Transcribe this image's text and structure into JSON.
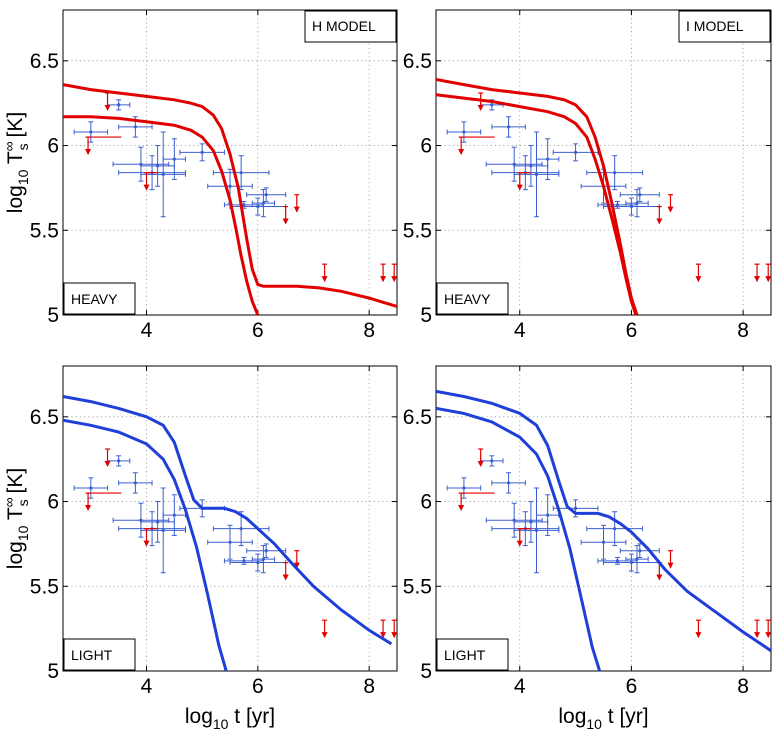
{
  "figure": {
    "x_label": "log10 t [yr]",
    "y_label": "log10 T∞s [K]"
  },
  "chart_data": [
    {
      "type": "line",
      "panel": "top-left",
      "model_label": "H MODEL",
      "envelope_label": "HEAVY",
      "xlim": [
        2.5,
        8.5
      ],
      "ylim": [
        5,
        6.8
      ],
      "xticks": [
        4,
        6,
        8
      ],
      "yticks": [
        5,
        5.5,
        6,
        6.5
      ],
      "show_x_label": false,
      "show_y_label": true,
      "curve_color": "#e00000",
      "series": [
        {
          "name": "curve-1",
          "x": [
            2.5,
            3,
            3.5,
            4,
            4.5,
            4.8,
            5,
            5.2,
            5.35,
            5.5,
            5.65,
            5.8,
            5.9,
            6,
            6.1,
            6.3,
            6.7,
            7.1,
            7.5,
            8,
            8.5
          ],
          "y": [
            6.36,
            6.33,
            6.31,
            6.29,
            6.27,
            6.25,
            6.23,
            6.18,
            6.1,
            5.95,
            5.75,
            5.45,
            5.27,
            5.18,
            5.17,
            5.17,
            5.17,
            5.16,
            5.14,
            5.1,
            5.05
          ]
        },
        {
          "name": "curve-2",
          "x": [
            2.5,
            3,
            3.5,
            4,
            4.5,
            4.8,
            5,
            5.2,
            5.35,
            5.5,
            5.6,
            5.7,
            5.8,
            5.9,
            6
          ],
          "y": [
            6.17,
            6.17,
            6.16,
            6.14,
            6.12,
            6.09,
            6.05,
            5.97,
            5.85,
            5.68,
            5.52,
            5.35,
            5.2,
            5.08,
            5.0
          ]
        }
      ]
    },
    {
      "type": "line",
      "panel": "top-right",
      "model_label": "I MODEL",
      "envelope_label": "HEAVY",
      "xlim": [
        2.5,
        8.5
      ],
      "ylim": [
        5,
        6.8
      ],
      "xticks": [
        4,
        6,
        8
      ],
      "yticks": [
        5,
        5.5,
        6,
        6.5
      ],
      "show_x_label": false,
      "show_y_label": false,
      "curve_color": "#e00000",
      "series": [
        {
          "name": "curve-1",
          "x": [
            2.5,
            3,
            3.5,
            4,
            4.5,
            4.8,
            5,
            5.2,
            5.35,
            5.5,
            5.65,
            5.8,
            5.9,
            6,
            6.1
          ],
          "y": [
            6.39,
            6.36,
            6.33,
            6.31,
            6.29,
            6.27,
            6.24,
            6.17,
            6.05,
            5.88,
            5.66,
            5.42,
            5.25,
            5.1,
            5.0
          ]
        },
        {
          "name": "curve-2",
          "x": [
            2.5,
            3,
            3.5,
            4,
            4.5,
            4.8,
            5,
            5.2,
            5.35,
            5.5,
            5.65,
            5.8,
            5.9,
            6,
            6.08
          ],
          "y": [
            6.3,
            6.28,
            6.26,
            6.23,
            6.2,
            6.17,
            6.13,
            6.05,
            5.92,
            5.76,
            5.57,
            5.37,
            5.22,
            5.08,
            5.0
          ]
        }
      ]
    },
    {
      "type": "line",
      "panel": "bottom-left",
      "model_label": "",
      "envelope_label": "LIGHT",
      "xlim": [
        2.5,
        8.5
      ],
      "ylim": [
        5,
        6.8
      ],
      "xticks": [
        4,
        6,
        8
      ],
      "yticks": [
        5,
        5.5,
        6,
        6.5
      ],
      "show_x_label": true,
      "show_y_label": true,
      "curve_color": "#1f3fd9",
      "series": [
        {
          "name": "curve-1",
          "x": [
            2.5,
            3,
            3.5,
            4,
            4.3,
            4.5,
            4.7,
            4.85,
            5,
            5.2,
            5.4,
            5.6,
            5.8,
            6,
            6.3,
            6.6,
            7,
            7.5,
            8,
            8.4
          ],
          "y": [
            6.62,
            6.59,
            6.55,
            6.5,
            6.45,
            6.35,
            6.15,
            6.01,
            5.96,
            5.96,
            5.96,
            5.94,
            5.9,
            5.84,
            5.75,
            5.64,
            5.5,
            5.36,
            5.24,
            5.16
          ]
        },
        {
          "name": "curve-2",
          "x": [
            2.5,
            3,
            3.5,
            4,
            4.3,
            4.5,
            4.7,
            4.9,
            5.1,
            5.3,
            5.45
          ],
          "y": [
            6.48,
            6.45,
            6.41,
            6.34,
            6.25,
            6.13,
            5.95,
            5.73,
            5.45,
            5.15,
            4.98
          ]
        }
      ]
    },
    {
      "type": "line",
      "panel": "bottom-right",
      "model_label": "",
      "envelope_label": "LIGHT",
      "xlim": [
        2.5,
        8.5
      ],
      "ylim": [
        5,
        6.8
      ],
      "xticks": [
        4,
        6,
        8
      ],
      "yticks": [
        5,
        5.5,
        6,
        6.5
      ],
      "show_x_label": true,
      "show_y_label": false,
      "curve_color": "#1f3fd9",
      "series": [
        {
          "name": "curve-1",
          "x": [
            2.5,
            3,
            3.5,
            4,
            4.3,
            4.5,
            4.7,
            4.85,
            5,
            5.2,
            5.4,
            5.6,
            5.8,
            6,
            6.3,
            6.6,
            7,
            7.5,
            8,
            8.5
          ],
          "y": [
            6.65,
            6.62,
            6.58,
            6.52,
            6.45,
            6.33,
            6.12,
            5.97,
            5.93,
            5.93,
            5.93,
            5.91,
            5.87,
            5.82,
            5.72,
            5.6,
            5.47,
            5.35,
            5.23,
            5.12
          ]
        },
        {
          "name": "curve-2",
          "x": [
            2.5,
            3,
            3.5,
            4,
            4.3,
            4.5,
            4.7,
            4.9,
            5.1,
            5.3,
            5.45
          ],
          "y": [
            6.55,
            6.52,
            6.47,
            6.38,
            6.28,
            6.15,
            5.95,
            5.72,
            5.43,
            5.14,
            4.98
          ]
        }
      ]
    }
  ],
  "observations": {
    "points": [
      {
        "x": 3.5,
        "y": 6.24,
        "xerr": 0.2,
        "yerr": 0.03
      },
      {
        "x": 3.0,
        "y": 6.08,
        "xerr": 0.3,
        "yerr": 0.06
      },
      {
        "x": 3.8,
        "y": 6.11,
        "xerr": 0.3,
        "yerr": 0.06
      },
      {
        "x": 3.9,
        "y": 5.89,
        "xerr": 0.5,
        "yerr": 0.1
      },
      {
        "x": 4.2,
        "y": 5.88,
        "xerr": 0.3,
        "yerr": 0.12
      },
      {
        "x": 4.1,
        "y": 5.84,
        "xerr": 0.6,
        "yerr": 0.1
      },
      {
        "x": 4.3,
        "y": 5.83,
        "xerr": 0.4,
        "yerr": 0.25
      },
      {
        "x": 4.5,
        "y": 5.92,
        "xerr": 0.2,
        "yerr": 0.12
      },
      {
        "x": 5.0,
        "y": 5.96,
        "xerr": 0.4,
        "yerr": 0.05
      },
      {
        "x": 5.5,
        "y": 5.76,
        "xerr": 0.4,
        "yerr": 0.1
      },
      {
        "x": 5.7,
        "y": 5.84,
        "xerr": 0.5,
        "yerr": 0.1
      },
      {
        "x": 5.75,
        "y": 5.65,
        "xerr": 0.35,
        "yerr": 0.02
      },
      {
        "x": 6.0,
        "y": 5.64,
        "xerr": 0.5,
        "yerr": 0.05
      },
      {
        "x": 6.1,
        "y": 5.66,
        "xerr": 0.2,
        "yerr": 0.08
      },
      {
        "x": 6.15,
        "y": 5.71,
        "xerr": 0.35,
        "yerr": 0.04
      }
    ],
    "upper_limits": [
      {
        "x": 3.3,
        "y": 6.31,
        "length": 0.1
      },
      {
        "x": 2.95,
        "y": 6.05,
        "length": 0.1,
        "xerr_low": 0,
        "xerr_high": 0.6
      },
      {
        "x": 4.0,
        "y": 5.84,
        "length": 0.1,
        "xerr_low": 0,
        "xerr_high": 0.2
      },
      {
        "x": 6.5,
        "y": 5.64,
        "length": 0.1
      },
      {
        "x": 6.7,
        "y": 5.71,
        "length": 0.1
      },
      {
        "x": 7.2,
        "y": 5.3,
        "length": 0.1
      },
      {
        "x": 8.25,
        "y": 5.3,
        "length": 0.1
      },
      {
        "x": 8.45,
        "y": 5.3,
        "length": 0.1
      }
    ],
    "point_color": "#3b5fd0",
    "limit_color": "#e00000"
  }
}
